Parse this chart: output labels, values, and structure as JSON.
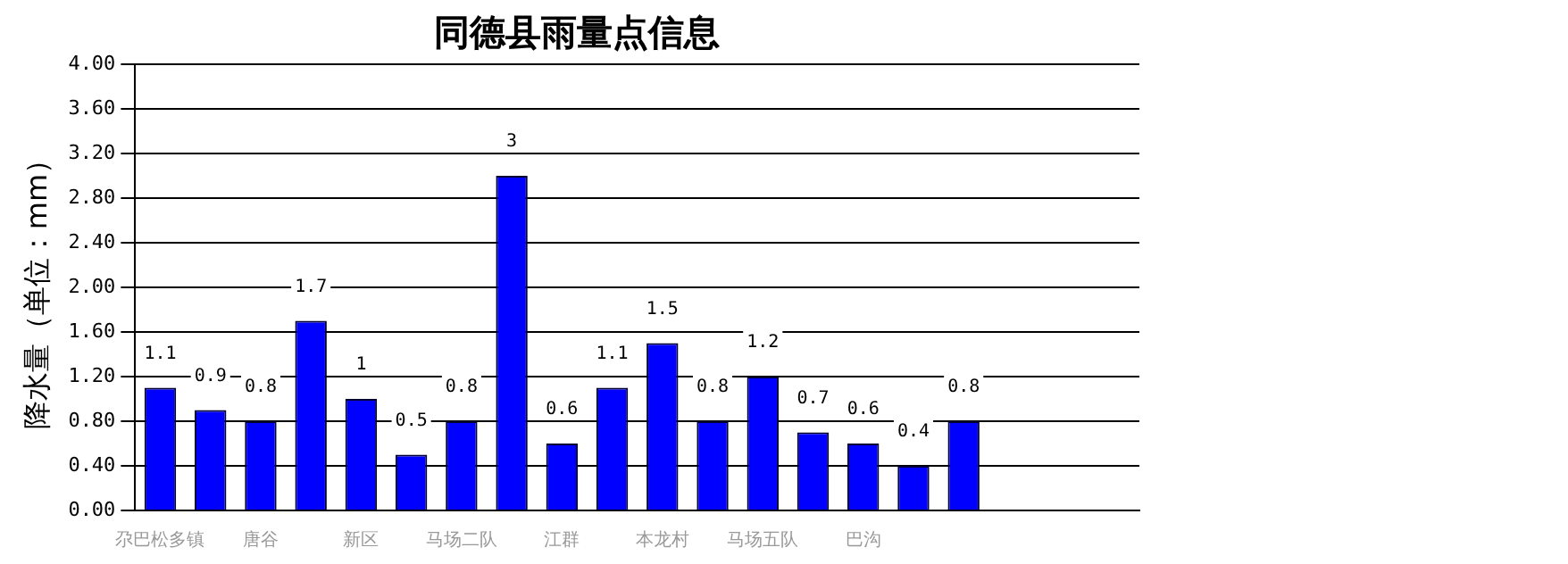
{
  "chart_data": {
    "type": "bar",
    "title": "同德县雨量点信息",
    "ylabel": "降水量（单位：mm）",
    "categories": [
      "尕巴松多镇",
      null,
      "唐谷",
      null,
      "新区",
      null,
      "马场二队",
      null,
      "江群",
      null,
      "本龙村",
      null,
      "马场五队",
      null,
      "巴沟",
      null,
      null,
      null,
      null,
      null
    ],
    "values": [
      1.1,
      0.9,
      0.8,
      1.7,
      1,
      0.5,
      0.8,
      3,
      0.6,
      1.1,
      1.5,
      0.8,
      1.2,
      0.7,
      0.6,
      0.4,
      0.8,
      null,
      null,
      null
    ],
    "color": "#0000ff",
    "ylim": [
      0,
      4
    ],
    "yticks": [
      {
        "value": 0,
        "label": "0.00"
      },
      {
        "value": 0.4,
        "label": "0.40"
      },
      {
        "value": 0.8,
        "label": "0.80"
      },
      {
        "value": 1.2,
        "label": "1.20"
      },
      {
        "value": 1.6,
        "label": "1.60"
      },
      {
        "value": 2,
        "label": "2.00"
      },
      {
        "value": 2.4,
        "label": "2.40"
      },
      {
        "value": 2.8,
        "label": "2.80"
      },
      {
        "value": 3.2,
        "label": "3.20"
      },
      {
        "value": 3.6,
        "label": "3.60"
      },
      {
        "value": 4,
        "label": "4.00"
      }
    ],
    "grid": "y",
    "legend": false,
    "data_labels": true
  }
}
